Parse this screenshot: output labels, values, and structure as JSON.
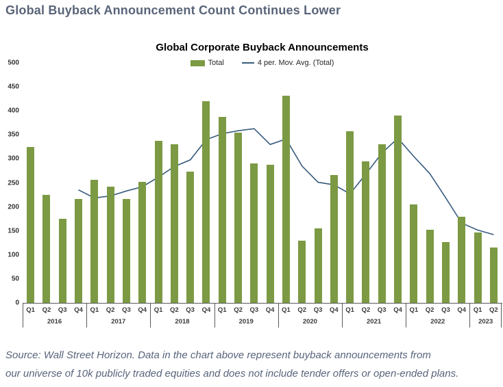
{
  "headline": "Global Buyback Announcement Count Continues Lower",
  "footer": {
    "line1": "Source: Wall Street Horizon. Data in the chart above represent buyback announcements from",
    "line2": "our universe of 10k publicly traded equities and does not include tender offers or open-ended plans."
  },
  "chart_data": {
    "type": "bar",
    "title": "Global Corporate Buyback Announcements",
    "legend": [
      "Total",
      "4 per. Mov. Avg. (Total)"
    ],
    "legend_position": "top",
    "xlabel": "",
    "ylabel": "",
    "ylim": [
      0,
      500
    ],
    "ytick_step": 50,
    "grid": false,
    "years": [
      {
        "label": "2016",
        "quarters": [
          "Q1",
          "Q2",
          "Q3",
          "Q4"
        ]
      },
      {
        "label": "2017",
        "quarters": [
          "Q1",
          "Q2",
          "Q3",
          "Q4"
        ]
      },
      {
        "label": "2018",
        "quarters": [
          "Q1",
          "Q2",
          "Q3",
          "Q4"
        ]
      },
      {
        "label": "2019",
        "quarters": [
          "Q1",
          "Q2",
          "Q3",
          "Q4"
        ]
      },
      {
        "label": "2020",
        "quarters": [
          "Q1",
          "Q2",
          "Q3",
          "Q4"
        ]
      },
      {
        "label": "2021",
        "quarters": [
          "Q1",
          "Q2",
          "Q3",
          "Q4"
        ]
      },
      {
        "label": "2022",
        "quarters": [
          "Q1",
          "Q2",
          "Q3",
          "Q4"
        ]
      },
      {
        "label": "2023",
        "quarters": [
          "Q1",
          "Q2"
        ]
      }
    ],
    "categories": [
      "2016 Q1",
      "2016 Q2",
      "2016 Q3",
      "2016 Q4",
      "2017 Q1",
      "2017 Q2",
      "2017 Q3",
      "2017 Q4",
      "2018 Q1",
      "2018 Q2",
      "2018 Q3",
      "2018 Q4",
      "2019 Q1",
      "2019 Q2",
      "2019 Q3",
      "2019 Q4",
      "2020 Q1",
      "2020 Q2",
      "2020 Q3",
      "2020 Q4",
      "2021 Q1",
      "2021 Q2",
      "2021 Q3",
      "2021 Q4",
      "2022 Q1",
      "2022 Q2",
      "2022 Q3",
      "2022 Q4",
      "2023 Q1",
      "2023 Q2"
    ],
    "series": [
      {
        "name": "Total",
        "type": "bar",
        "color": "#7c9a43",
        "values": [
          325,
          225,
          175,
          217,
          257,
          242,
          217,
          252,
          337,
          330,
          273,
          420,
          387,
          355,
          290,
          288,
          432,
          130,
          155,
          267,
          357,
          295,
          330,
          390,
          205,
          153,
          127,
          180,
          147,
          115
        ]
      },
      {
        "name": "4 per. Mov. Avg. (Total)",
        "type": "line",
        "color": "#365a7d",
        "values": [
          null,
          null,
          null,
          235.5,
          218.5,
          222.75,
          233.25,
          242,
          262,
          284,
          298,
          340,
          352.5,
          358.75,
          363,
          330,
          341.25,
          285,
          251.25,
          246,
          227.25,
          268.5,
          312.25,
          343,
          305,
          269.5,
          218.75,
          166.25,
          151.75,
          142.25
        ]
      }
    ]
  },
  "colors": {
    "headline": "#596478",
    "footer": "#58647b",
    "axis": "#595959",
    "bar": "#7c9a43",
    "line": "#365a7d"
  }
}
